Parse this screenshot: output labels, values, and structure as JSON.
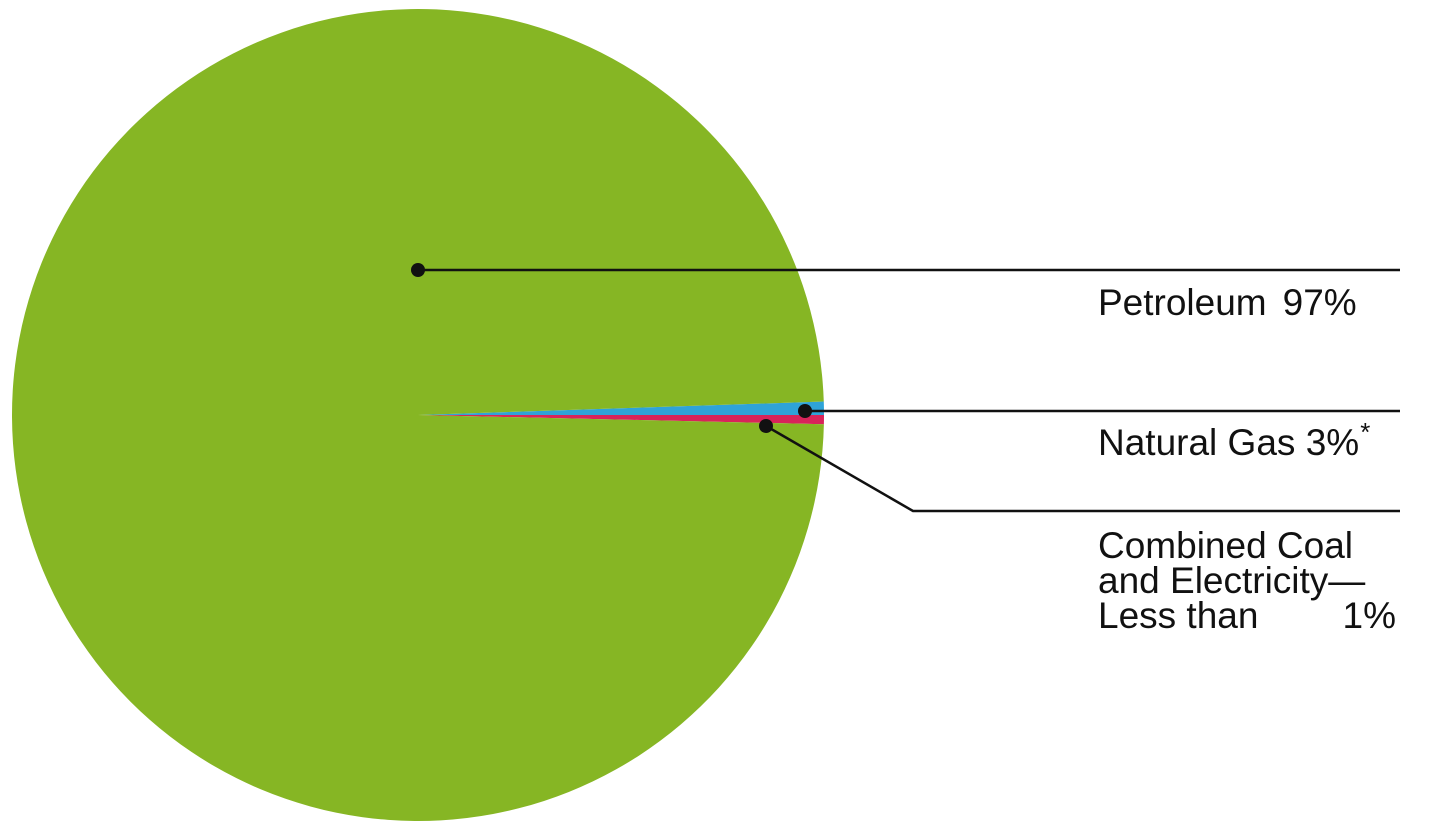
{
  "chart_data": {
    "type": "pie",
    "slices": [
      {
        "label": "Petroleum",
        "value": 97,
        "value_text": "97%",
        "color": "#86B624"
      },
      {
        "label": "Natural Gas",
        "value": 3,
        "value_text": "3%",
        "note_mark": "*",
        "color": "#2FA3D8"
      },
      {
        "label_lines": [
          "Combined Coal",
          "and Electricity—",
          "Less than"
        ],
        "value": 1,
        "value_text": "1%",
        "color": "#D8245A"
      }
    ],
    "legend_placement": "right"
  },
  "colors": {
    "leader_lines": "#111111",
    "text": "#111111"
  }
}
